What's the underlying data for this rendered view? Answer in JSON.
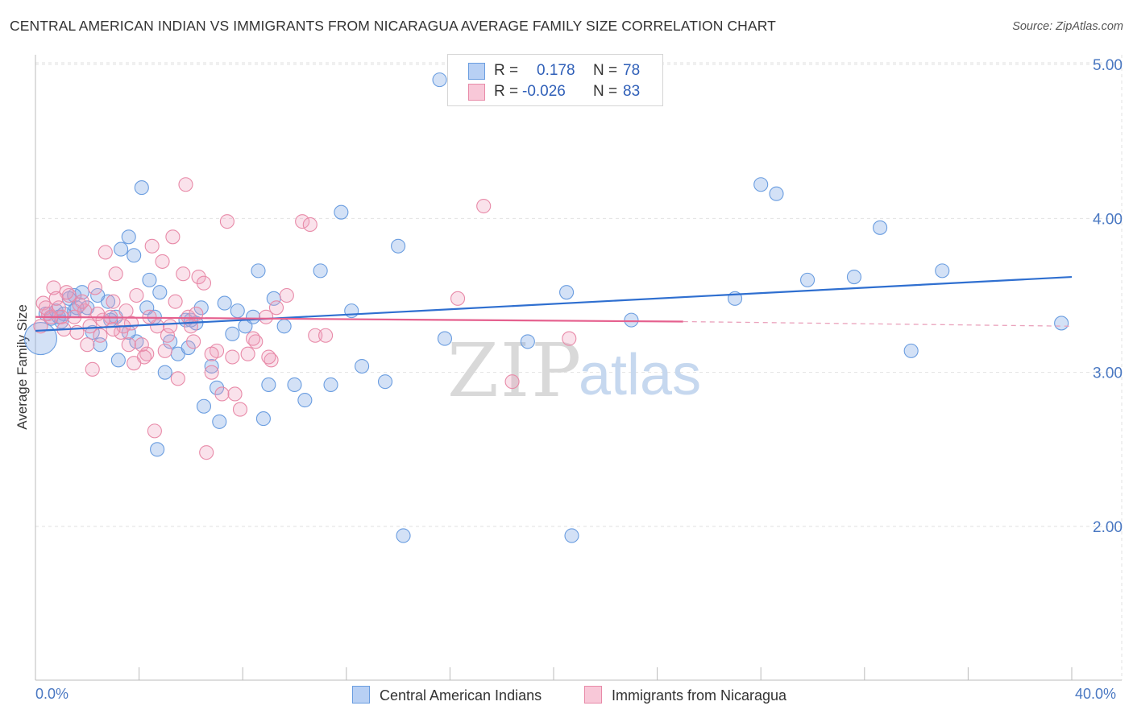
{
  "title": "CENTRAL AMERICAN INDIAN VS IMMIGRANTS FROM NICARAGUA AVERAGE FAMILY SIZE CORRELATION CHART",
  "source": "Source: ZipAtlas.com",
  "watermark": {
    "zip": "ZIP",
    "atlas": "atlas"
  },
  "stats": [
    {
      "r_label": "R =",
      "r_value": "0.178",
      "n_label": "N =",
      "n_value": "78",
      "color": "#6a9de0",
      "fill": "#b8d0f4"
    },
    {
      "r_label": "R =",
      "r_value": "-0.026",
      "n_label": "N =",
      "n_value": "83",
      "color": "#e88aa8",
      "fill": "#f8c8d8"
    }
  ],
  "legend": [
    {
      "label": "Central American Indians",
      "color": "#6a9de0",
      "fill": "#b8d0f4"
    },
    {
      "label": "Immigrants from Nicaragua",
      "color": "#e88aa8",
      "fill": "#f8c8d8"
    }
  ],
  "chart_data": {
    "type": "scatter",
    "title": "CENTRAL AMERICAN INDIAN VS IMMIGRANTS FROM NICARAGUA AVERAGE FAMILY SIZE CORRELATION CHART",
    "xlabel": "",
    "ylabel": "Average Family Size",
    "xlim": [
      0,
      40
    ],
    "ylim": [
      1.0,
      5.15
    ],
    "x_tick_labels": [
      "0.0%",
      "40.0%"
    ],
    "y_ticks": [
      2.0,
      3.0,
      4.0,
      5.0
    ],
    "y_tick_labels": [
      "2.00",
      "3.00",
      "4.00",
      "5.00"
    ],
    "grid": true,
    "series": [
      {
        "name": "Central American Indians",
        "color": "#3a75d4",
        "trend": {
          "x": [
            0,
            40
          ],
          "y": [
            3.27,
            3.62
          ]
        },
        "points": [
          [
            0.2,
            3.22
          ],
          [
            0.4,
            3.38
          ],
          [
            0.6,
            3.35
          ],
          [
            0.8,
            3.4
          ],
          [
            1.0,
            3.33
          ],
          [
            1.3,
            3.48
          ],
          [
            1.5,
            3.4
          ],
          [
            1.8,
            3.52
          ],
          [
            2.0,
            3.42
          ],
          [
            2.2,
            3.26
          ],
          [
            2.5,
            3.18
          ],
          [
            2.8,
            3.46
          ],
          [
            3.1,
            3.36
          ],
          [
            3.3,
            3.8
          ],
          [
            3.6,
            3.88
          ],
          [
            3.8,
            3.76
          ],
          [
            4.1,
            4.2
          ],
          [
            4.3,
            3.42
          ],
          [
            4.6,
            3.36
          ],
          [
            4.8,
            3.52
          ],
          [
            5.2,
            3.2
          ],
          [
            5.5,
            3.12
          ],
          [
            5.8,
            3.34
          ],
          [
            6.2,
            3.32
          ],
          [
            6.5,
            2.78
          ],
          [
            7.0,
            2.9
          ],
          [
            7.3,
            3.45
          ],
          [
            7.8,
            3.4
          ],
          [
            8.1,
            3.3
          ],
          [
            8.6,
            3.66
          ],
          [
            9.0,
            2.92
          ],
          [
            9.2,
            3.48
          ],
          [
            10.0,
            2.92
          ],
          [
            11.0,
            3.66
          ],
          [
            11.8,
            4.04
          ],
          [
            12.6,
            3.04
          ],
          [
            13.5,
            2.94
          ],
          [
            15.8,
            3.22
          ],
          [
            19.0,
            3.2
          ],
          [
            23.0,
            3.34
          ],
          [
            27.0,
            3.48
          ],
          [
            28.6,
            4.16
          ],
          [
            29.8,
            3.6
          ],
          [
            31.6,
            3.62
          ],
          [
            32.6,
            3.94
          ],
          [
            33.8,
            3.14
          ],
          [
            35.0,
            3.66
          ],
          [
            39.6,
            3.32
          ],
          [
            14.0,
            3.82
          ],
          [
            15.6,
            4.9
          ],
          [
            3.2,
            3.08
          ],
          [
            2.4,
            3.5
          ],
          [
            1.1,
            3.38
          ],
          [
            6.8,
            3.04
          ],
          [
            5.0,
            3.0
          ],
          [
            7.6,
            3.25
          ],
          [
            1.6,
            3.42
          ],
          [
            4.4,
            3.6
          ],
          [
            10.4,
            2.82
          ],
          [
            2.9,
            3.34
          ],
          [
            8.8,
            2.7
          ],
          [
            5.9,
            3.16
          ],
          [
            3.9,
            3.2
          ],
          [
            0.9,
            3.36
          ],
          [
            6.4,
            3.42
          ],
          [
            7.1,
            2.68
          ],
          [
            11.4,
            2.92
          ],
          [
            12.2,
            3.4
          ],
          [
            14.2,
            1.94
          ],
          [
            20.7,
            1.94
          ],
          [
            1.5,
            3.5
          ],
          [
            3.6,
            3.26
          ],
          [
            6.0,
            3.34
          ],
          [
            4.7,
            2.5
          ],
          [
            8.4,
            3.36
          ],
          [
            9.6,
            3.3
          ],
          [
            28.0,
            4.22
          ],
          [
            20.5,
            3.52
          ]
        ]
      },
      {
        "name": "Immigrants from Nicaragua",
        "color": "#e86d96",
        "trend": {
          "x": [
            0,
            25
          ],
          "y": [
            3.36,
            3.33
          ]
        },
        "trend_dashed": {
          "x": [
            25,
            40
          ],
          "y": [
            3.33,
            3.3
          ]
        },
        "points": [
          [
            0.2,
            3.3
          ],
          [
            0.3,
            3.45
          ],
          [
            0.5,
            3.38
          ],
          [
            0.7,
            3.55
          ],
          [
            0.9,
            3.42
          ],
          [
            1.1,
            3.28
          ],
          [
            1.3,
            3.5
          ],
          [
            1.5,
            3.36
          ],
          [
            1.7,
            3.44
          ],
          [
            1.9,
            3.4
          ],
          [
            2.1,
            3.3
          ],
          [
            2.3,
            3.55
          ],
          [
            2.5,
            3.24
          ],
          [
            2.7,
            3.78
          ],
          [
            2.9,
            3.36
          ],
          [
            3.1,
            3.64
          ],
          [
            3.3,
            3.26
          ],
          [
            3.5,
            3.4
          ],
          [
            3.7,
            3.32
          ],
          [
            3.9,
            3.5
          ],
          [
            4.1,
            3.18
          ],
          [
            4.3,
            3.12
          ],
          [
            4.5,
            3.82
          ],
          [
            4.7,
            3.3
          ],
          [
            4.9,
            3.72
          ],
          [
            5.1,
            3.24
          ],
          [
            5.3,
            3.88
          ],
          [
            5.5,
            2.96
          ],
          [
            5.7,
            3.64
          ],
          [
            5.9,
            3.36
          ],
          [
            6.1,
            3.2
          ],
          [
            6.3,
            3.62
          ],
          [
            6.5,
            3.58
          ],
          [
            6.8,
            3.0
          ],
          [
            7.2,
            2.86
          ],
          [
            7.7,
            2.86
          ],
          [
            8.2,
            3.12
          ],
          [
            8.9,
            3.36
          ],
          [
            9.3,
            3.42
          ],
          [
            10.3,
            3.98
          ],
          [
            10.8,
            3.24
          ],
          [
            17.3,
            4.08
          ],
          [
            18.4,
            2.94
          ],
          [
            20.6,
            3.22
          ],
          [
            16.3,
            3.48
          ],
          [
            0.4,
            3.42
          ],
          [
            1.0,
            3.36
          ],
          [
            1.6,
            3.26
          ],
          [
            2.2,
            3.02
          ],
          [
            2.6,
            3.34
          ],
          [
            3.0,
            3.46
          ],
          [
            3.4,
            3.3
          ],
          [
            3.8,
            3.06
          ],
          [
            4.2,
            3.1
          ],
          [
            4.6,
            2.62
          ],
          [
            5.0,
            3.14
          ],
          [
            5.4,
            3.46
          ],
          [
            5.8,
            4.22
          ],
          [
            6.2,
            3.38
          ],
          [
            6.6,
            2.48
          ],
          [
            7.0,
            3.14
          ],
          [
            7.4,
            3.98
          ],
          [
            7.9,
            2.76
          ],
          [
            8.5,
            3.2
          ],
          [
            9.1,
            3.08
          ],
          [
            9.7,
            3.5
          ],
          [
            10.6,
            3.96
          ],
          [
            11.2,
            3.24
          ],
          [
            0.6,
            3.36
          ],
          [
            1.2,
            3.52
          ],
          [
            1.8,
            3.46
          ],
          [
            2.4,
            3.38
          ],
          [
            3.0,
            3.28
          ],
          [
            3.6,
            3.18
          ],
          [
            4.4,
            3.36
          ],
          [
            5.2,
            3.3
          ],
          [
            6.0,
            3.3
          ],
          [
            6.8,
            3.12
          ],
          [
            7.6,
            3.1
          ],
          [
            8.4,
            3.22
          ],
          [
            9.0,
            3.1
          ],
          [
            0.8,
            3.48
          ],
          [
            2.0,
            3.18
          ]
        ]
      }
    ]
  }
}
